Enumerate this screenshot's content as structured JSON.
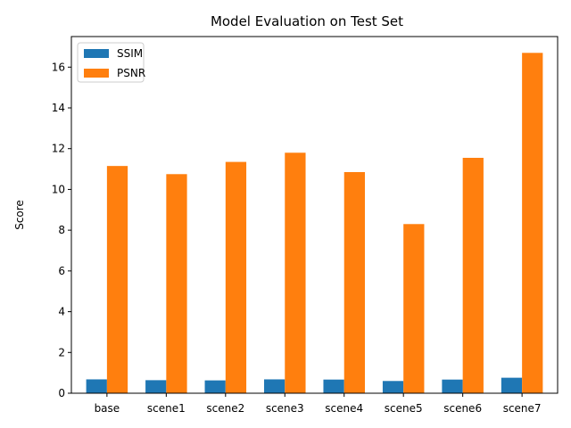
{
  "chart_data": {
    "type": "bar",
    "title": "Model Evaluation on Test Set",
    "xlabel": "",
    "ylabel": "Score",
    "categories": [
      "base",
      "scene1",
      "scene2",
      "scene3",
      "scene4",
      "scene5",
      "scene6",
      "scene7"
    ],
    "series": [
      {
        "name": "SSIM",
        "color": "#1f77b4",
        "values": [
          0.68,
          0.64,
          0.63,
          0.68,
          0.67,
          0.6,
          0.67,
          0.76
        ]
      },
      {
        "name": "PSNR",
        "color": "#ff7f0e",
        "values": [
          11.15,
          10.75,
          11.35,
          11.8,
          10.85,
          8.3,
          11.55,
          16.7
        ]
      }
    ],
    "ylim": [
      0,
      17.5
    ],
    "yticks": [
      0,
      2,
      4,
      6,
      8,
      10,
      12,
      14,
      16
    ],
    "grid": false,
    "legend_position": "top-left"
  }
}
